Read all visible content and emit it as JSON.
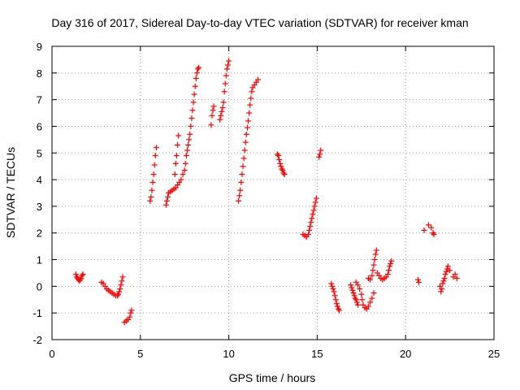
{
  "chart_data": {
    "type": "scatter",
    "title": "Day 316 of 2017, Sidereal Day-to-day VTEC variation (SDTVAR) for receiver kman",
    "xlabel": "GPS time / hours",
    "ylabel": "SDTVAR / TECUs",
    "xlim": [
      0,
      25
    ],
    "ylim": [
      -2,
      9
    ],
    "xticks": [
      0,
      5,
      10,
      15,
      20,
      25
    ],
    "yticks": [
      -2,
      -1,
      0,
      1,
      2,
      3,
      4,
      5,
      6,
      7,
      8,
      9
    ],
    "grid": true,
    "marker": "+",
    "marker_color": "#ff0000",
    "series": [
      {
        "points": [
          [
            1.35,
            0.45
          ],
          [
            1.4,
            0.35
          ],
          [
            1.45,
            0.3
          ],
          [
            1.5,
            0.25
          ],
          [
            1.55,
            0.2
          ],
          [
            1.6,
            0.25
          ],
          [
            1.65,
            0.3
          ],
          [
            1.7,
            0.4
          ],
          [
            1.75,
            0.45
          ],
          [
            2.8,
            0.15
          ],
          [
            2.9,
            0.1
          ],
          [
            3.0,
            0.0
          ],
          [
            3.1,
            -0.1
          ],
          [
            3.2,
            -0.15
          ],
          [
            3.3,
            -0.2
          ],
          [
            3.4,
            -0.25
          ],
          [
            3.5,
            -0.3
          ],
          [
            3.6,
            -0.35
          ],
          [
            3.7,
            -0.35
          ],
          [
            3.75,
            -0.3
          ],
          [
            3.8,
            -0.2
          ],
          [
            3.85,
            -0.1
          ],
          [
            3.9,
            0.05
          ],
          [
            3.95,
            0.2
          ],
          [
            4.0,
            0.35
          ],
          [
            4.1,
            -1.35
          ],
          [
            4.2,
            -1.3
          ],
          [
            4.3,
            -1.25
          ],
          [
            4.4,
            -1.15
          ],
          [
            4.45,
            -1.0
          ],
          [
            4.5,
            -0.9
          ],
          [
            5.55,
            3.2
          ],
          [
            5.6,
            3.35
          ],
          [
            5.65,
            3.6
          ],
          [
            5.7,
            3.9
          ],
          [
            5.75,
            4.2
          ],
          [
            5.8,
            4.55
          ],
          [
            5.85,
            4.9
          ],
          [
            5.9,
            5.2
          ],
          [
            6.45,
            3.05
          ],
          [
            6.5,
            3.2
          ],
          [
            6.55,
            3.35
          ],
          [
            6.6,
            3.5
          ],
          [
            6.7,
            3.55
          ],
          [
            6.8,
            3.6
          ],
          [
            6.9,
            3.65
          ],
          [
            7.0,
            3.7
          ],
          [
            7.1,
            3.8
          ],
          [
            7.2,
            3.9
          ],
          [
            7.3,
            4.0
          ],
          [
            6.95,
            4.2
          ],
          [
            7.0,
            4.6
          ],
          [
            7.05,
            4.9
          ],
          [
            7.1,
            5.3
          ],
          [
            7.15,
            5.65
          ],
          [
            7.4,
            4.2
          ],
          [
            7.5,
            4.35
          ],
          [
            7.55,
            4.6
          ],
          [
            7.6,
            4.9
          ],
          [
            7.65,
            5.1
          ],
          [
            7.7,
            5.3
          ],
          [
            7.75,
            5.5
          ],
          [
            7.8,
            5.7
          ],
          [
            7.85,
            6.0
          ],
          [
            7.9,
            6.3
          ],
          [
            7.95,
            6.6
          ],
          [
            8.0,
            6.9
          ],
          [
            8.05,
            7.2
          ],
          [
            8.1,
            7.5
          ],
          [
            8.15,
            7.8
          ],
          [
            8.2,
            8.0
          ],
          [
            8.25,
            8.15
          ],
          [
            8.3,
            8.2
          ],
          [
            9.0,
            6.05
          ],
          [
            9.05,
            6.4
          ],
          [
            9.1,
            6.6
          ],
          [
            9.15,
            6.75
          ],
          [
            9.5,
            6.25
          ],
          [
            9.55,
            6.4
          ],
          [
            9.6,
            6.55
          ],
          [
            9.65,
            6.7
          ],
          [
            9.7,
            6.9
          ],
          [
            9.75,
            7.3
          ],
          [
            9.8,
            7.6
          ],
          [
            9.85,
            7.9
          ],
          [
            9.9,
            8.15
          ],
          [
            9.95,
            8.3
          ],
          [
            10.0,
            8.45
          ],
          [
            10.55,
            3.2
          ],
          [
            10.6,
            3.4
          ],
          [
            10.65,
            3.6
          ],
          [
            10.7,
            3.9
          ],
          [
            10.75,
            4.2
          ],
          [
            10.8,
            4.5
          ],
          [
            10.85,
            4.8
          ],
          [
            10.9,
            5.1
          ],
          [
            10.95,
            5.4
          ],
          [
            11.0,
            5.7
          ],
          [
            11.05,
            5.95
          ],
          [
            11.1,
            6.2
          ],
          [
            11.15,
            6.5
          ],
          [
            11.2,
            6.8
          ],
          [
            11.25,
            7.05
          ],
          [
            11.3,
            7.3
          ],
          [
            11.35,
            7.45
          ],
          [
            11.45,
            7.55
          ],
          [
            11.55,
            7.65
          ],
          [
            11.65,
            7.75
          ],
          [
            12.75,
            4.95
          ],
          [
            12.8,
            4.9
          ],
          [
            12.85,
            4.75
          ],
          [
            12.9,
            4.6
          ],
          [
            12.95,
            4.5
          ],
          [
            13.0,
            4.4
          ],
          [
            13.05,
            4.35
          ],
          [
            13.1,
            4.25
          ],
          [
            13.15,
            4.2
          ],
          [
            14.2,
            1.95
          ],
          [
            14.3,
            1.9
          ],
          [
            14.4,
            1.85
          ],
          [
            14.5,
            1.95
          ],
          [
            14.55,
            2.1
          ],
          [
            14.6,
            2.25
          ],
          [
            14.65,
            2.4
          ],
          [
            14.7,
            2.55
          ],
          [
            14.75,
            2.7
          ],
          [
            14.8,
            2.85
          ],
          [
            14.85,
            3.0
          ],
          [
            14.9,
            3.15
          ],
          [
            14.95,
            3.3
          ],
          [
            15.1,
            4.85
          ],
          [
            15.15,
            4.95
          ],
          [
            15.2,
            5.1
          ],
          [
            15.8,
            0.1
          ],
          [
            15.85,
            0.0
          ],
          [
            15.9,
            -0.1
          ],
          [
            15.95,
            -0.2
          ],
          [
            16.0,
            -0.35
          ],
          [
            16.05,
            -0.5
          ],
          [
            16.1,
            -0.65
          ],
          [
            16.15,
            -0.75
          ],
          [
            16.2,
            -0.85
          ],
          [
            16.25,
            -0.9
          ],
          [
            16.9,
            0.05
          ],
          [
            16.95,
            -0.05
          ],
          [
            17.0,
            -0.15
          ],
          [
            17.05,
            -0.25
          ],
          [
            17.1,
            -0.35
          ],
          [
            17.15,
            -0.45
          ],
          [
            17.2,
            -0.5
          ],
          [
            17.25,
            -0.6
          ],
          [
            17.3,
            -0.7
          ],
          [
            17.2,
            0.15
          ],
          [
            17.3,
            0.05
          ],
          [
            17.4,
            -0.1
          ],
          [
            17.5,
            -0.3
          ],
          [
            17.55,
            -0.5
          ],
          [
            17.6,
            -0.7
          ],
          [
            17.7,
            -0.8
          ],
          [
            17.8,
            -0.85
          ],
          [
            17.9,
            -0.75
          ],
          [
            18.0,
            -0.6
          ],
          [
            18.1,
            -0.45
          ],
          [
            18.2,
            -0.25
          ],
          [
            17.9,
            0.3
          ],
          [
            18.0,
            0.25
          ],
          [
            18.1,
            0.4
          ],
          [
            18.15,
            0.6
          ],
          [
            18.2,
            0.8
          ],
          [
            18.25,
            1.0
          ],
          [
            18.3,
            1.2
          ],
          [
            18.35,
            1.35
          ],
          [
            18.4,
            0.5
          ],
          [
            18.5,
            0.4
          ],
          [
            18.6,
            0.3
          ],
          [
            18.7,
            0.25
          ],
          [
            18.8,
            0.3
          ],
          [
            18.9,
            0.35
          ],
          [
            19.0,
            0.45
          ],
          [
            19.05,
            0.6
          ],
          [
            19.1,
            0.75
          ],
          [
            19.15,
            0.85
          ],
          [
            19.2,
            0.95
          ],
          [
            20.7,
            0.25
          ],
          [
            20.75,
            0.15
          ],
          [
            21.05,
            2.1
          ],
          [
            21.3,
            2.3
          ],
          [
            21.45,
            2.2
          ],
          [
            21.55,
            2.0
          ],
          [
            21.6,
            1.95
          ],
          [
            21.95,
            0.0
          ],
          [
            22.0,
            -0.2
          ],
          [
            22.05,
            -0.1
          ],
          [
            22.1,
            0.1
          ],
          [
            22.15,
            0.2
          ],
          [
            22.2,
            0.3
          ],
          [
            22.25,
            0.45
          ],
          [
            22.3,
            0.55
          ],
          [
            22.35,
            0.65
          ],
          [
            22.4,
            0.75
          ],
          [
            22.5,
            0.6
          ],
          [
            22.7,
            0.35
          ],
          [
            22.8,
            0.45
          ],
          [
            22.9,
            0.3
          ]
        ]
      }
    ]
  }
}
